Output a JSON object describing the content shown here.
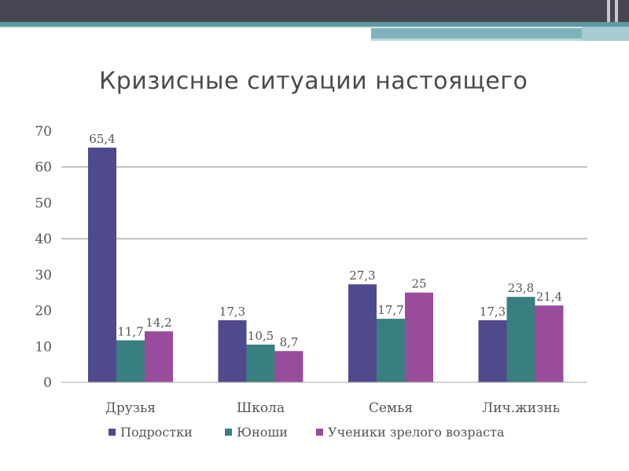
{
  "slide": {
    "title": "Кризисные ситуации настоящего"
  },
  "colors": {
    "header_bar": "#464653",
    "accent_teal": "#5f9aa3",
    "series_1": "#4f4a8c",
    "series_2": "#3a7f80",
    "series_3": "#9a4c9c"
  },
  "chart_data": {
    "type": "bar",
    "title": "",
    "xlabel": "",
    "ylabel": "",
    "ylim": [
      0,
      70
    ],
    "yticks": [
      0,
      10,
      20,
      30,
      40,
      50,
      60,
      70
    ],
    "grid": "horizontal at 40 and 60",
    "legend_position": "bottom",
    "categories": [
      "Друзья",
      "Школа",
      "Семья",
      "Лич.жизнь"
    ],
    "series": [
      {
        "name": "Подростки",
        "values": [
          65.4,
          17.3,
          27.3,
          17.3
        ],
        "labels": [
          "65,4",
          "17,3",
          "27,3",
          "17,3"
        ]
      },
      {
        "name": "Юноши",
        "values": [
          11.7,
          10.5,
          17.7,
          23.8
        ],
        "labels": [
          "11,7",
          "10,5",
          "17,7",
          "23,8"
        ]
      },
      {
        "name": "Ученики зрелого возраста",
        "values": [
          14.2,
          8.7,
          25,
          21.4
        ],
        "labels": [
          "14,2",
          "8,7",
          "25",
          "21,4"
        ]
      }
    ]
  }
}
